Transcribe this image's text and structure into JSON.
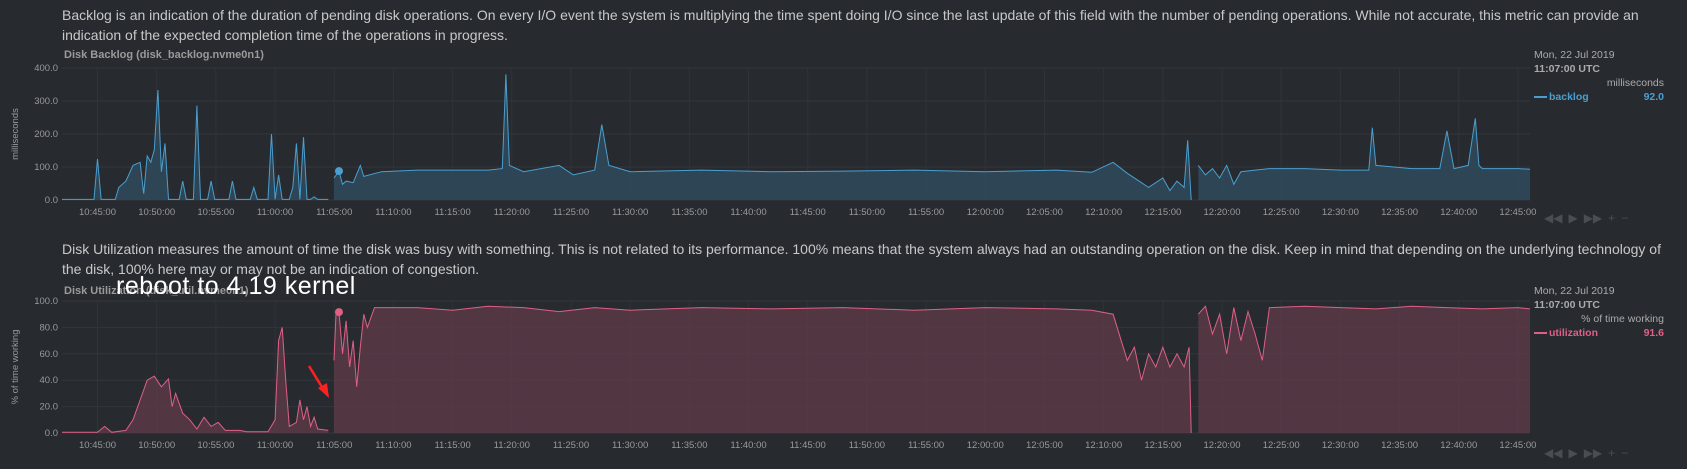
{
  "backlog_description": "Backlog is an indication of the duration of pending disk operations. On every I/O event the system is multiplying the time spent doing I/O since the last update of this field with the number of pending operations. While not accurate, this metric can provide an indication of the expected completion time of the operations in progress.",
  "utilization_description": "Disk Utilization measures the amount of time the disk was busy with something. This is not related to its performance. 100% means that the system always had an outstanding operation on the disk. Keep in mind that depending on the underlying technology of the disk, 100% here may or may not be an indication of congestion.",
  "annotation_text": "reboot to 4.19 kernel",
  "charts": {
    "backlog": {
      "title": "Disk Backlog (disk_backlog.nvme0n1)",
      "ylabel": "milliseconds",
      "legend": {
        "date": "Mon, 22 Jul 2019",
        "time": "11:07:00 UTC",
        "units": "milliseconds",
        "series": "backlog",
        "value": "92.0"
      },
      "color": "#4a9fd0",
      "fill": "#2f4a5c"
    },
    "utilization": {
      "title": "Disk Utilization (disk_util.nvme0n1)",
      "ylabel": "% of time working",
      "legend": {
        "date": "Mon, 22 Jul 2019",
        "time": "11:07:00 UTC",
        "units": "% of time working",
        "series": "utilization",
        "value": "91.6"
      },
      "color": "#e05f85",
      "fill": "#5a3a47"
    }
  },
  "controls": [
    "◀◀",
    "▶",
    "▶▶",
    "+",
    "−"
  ],
  "chart_data": [
    {
      "type": "area",
      "title": "Disk Backlog (disk_backlog.nvme0n1)",
      "ylabel": "milliseconds",
      "ylim": [
        0,
        420
      ],
      "yticks": [
        "400.0",
        "300.0",
        "200.0",
        "100.0",
        "0.0"
      ],
      "xticks": [
        "10:45:00",
        "10:50:00",
        "10:55:00",
        "11:00:00",
        "11:05:00",
        "11:10:00",
        "11:15:00",
        "11:20:00",
        "11:25:00",
        "11:30:00",
        "11:35:00",
        "11:40:00",
        "11:45:00",
        "11:50:00",
        "11:55:00",
        "12:00:00",
        "12:05:00",
        "12:10:00",
        "12:15:00",
        "12:20:00",
        "12:25:00",
        "12:30:00",
        "12:35:00",
        "12:40:00",
        "12:45:00"
      ],
      "grid": true,
      "series": [
        {
          "name": "backlog",
          "segments": [
            [
              [
                10.7,
                2
              ],
              [
                10.745,
                2
              ],
              [
                10.75,
                130
              ],
              [
                10.755,
                2
              ],
              [
                10.775,
                2
              ],
              [
                10.78,
                40
              ],
              [
                10.79,
                60
              ],
              [
                10.8,
                110
              ],
              [
                10.81,
                120
              ],
              [
                10.815,
                20
              ],
              [
                10.82,
                140
              ],
              [
                10.825,
                120
              ],
              [
                10.83,
                160
              ],
              [
                10.835,
                350
              ],
              [
                10.84,
                90
              ],
              [
                10.845,
                180
              ],
              [
                10.85,
                2
              ],
              [
                10.865,
                2
              ],
              [
                10.87,
                60
              ],
              [
                10.875,
                2
              ],
              [
                10.885,
                2
              ],
              [
                10.89,
                300
              ],
              [
                10.895,
                2
              ],
              [
                10.905,
                2
              ],
              [
                10.91,
                60
              ],
              [
                10.915,
                2
              ],
              [
                10.935,
                2
              ],
              [
                10.94,
                60
              ],
              [
                10.945,
                2
              ],
              [
                10.965,
                2
              ],
              [
                10.97,
                40
              ],
              [
                10.975,
                2
              ],
              [
                10.99,
                2
              ],
              [
                10.995,
                210
              ],
              [
                11.0,
                2
              ],
              [
                11.005,
                80
              ],
              [
                11.01,
                2
              ],
              [
                11.02,
                2
              ],
              [
                11.025,
                40
              ],
              [
                11.03,
                180
              ],
              [
                11.035,
                2
              ],
              [
                11.04,
                200
              ],
              [
                11.045,
                2
              ],
              [
                11.05,
                2
              ],
              [
                11.055,
                10
              ],
              [
                11.06,
                2
              ],
              [
                11.075,
                2
              ]
            ],
            [
              [
                11.083,
                70
              ],
              [
                11.09,
                92
              ],
              [
                11.095,
                50
              ],
              [
                11.1,
                60
              ],
              [
                11.11,
                55
              ],
              [
                11.12,
                110
              ],
              [
                11.125,
                75
              ],
              [
                11.15,
                90
              ],
              [
                11.2,
                95
              ],
              [
                11.3,
                95
              ],
              [
                11.32,
                100
              ],
              [
                11.325,
                400
              ],
              [
                11.33,
                110
              ],
              [
                11.35,
                90
              ],
              [
                11.4,
                110
              ],
              [
                11.42,
                80
              ],
              [
                11.45,
                95
              ],
              [
                11.46,
                240
              ],
              [
                11.47,
                110
              ],
              [
                11.5,
                90
              ],
              [
                11.6,
                95
              ],
              [
                11.7,
                90
              ],
              [
                11.8,
                92
              ],
              [
                11.9,
                95
              ],
              [
                12.0,
                90
              ],
              [
                12.1,
                95
              ],
              [
                12.15,
                88
              ],
              [
                12.18,
                120
              ],
              [
                12.2,
                85
              ],
              [
                12.23,
                40
              ],
              [
                12.25,
                70
              ],
              [
                12.26,
                30
              ],
              [
                12.27,
                60
              ],
              [
                12.28,
                40
              ],
              [
                12.285,
                190
              ],
              [
                12.29,
                0
              ]
            ],
            [
              [
                12.3,
                110
              ],
              [
                12.31,
                80
              ],
              [
                12.32,
                100
              ],
              [
                12.33,
                70
              ],
              [
                12.34,
                110
              ],
              [
                12.35,
                50
              ],
              [
                12.36,
                90
              ],
              [
                12.38,
                95
              ],
              [
                12.4,
                100
              ],
              [
                12.45,
                100
              ],
              [
                12.5,
                95
              ],
              [
                12.54,
                95
              ],
              [
                12.545,
                230
              ],
              [
                12.55,
                110
              ],
              [
                12.6,
                100
              ],
              [
                12.64,
                100
              ],
              [
                12.65,
                220
              ],
              [
                12.66,
                100
              ],
              [
                12.68,
                110
              ],
              [
                12.69,
                260
              ],
              [
                12.695,
                110
              ],
              [
                12.7,
                100
              ],
              [
                12.75,
                100
              ],
              [
                12.767,
                98
              ]
            ]
          ]
        }
      ]
    },
    {
      "type": "area",
      "title": "Disk Utilization (disk_util.nvme0n1)",
      "ylabel": "% of time working",
      "ylim": [
        0,
        100
      ],
      "yticks": [
        "100.0",
        "80.0",
        "60.0",
        "40.0",
        "20.0",
        "0.0"
      ],
      "xticks": [
        "10:45:00",
        "10:50:00",
        "10:55:00",
        "11:00:00",
        "11:05:00",
        "11:10:00",
        "11:15:00",
        "11:20:00",
        "11:25:00",
        "11:30:00",
        "11:35:00",
        "11:40:00",
        "11:45:00",
        "11:50:00",
        "11:55:00",
        "12:00:00",
        "12:05:00",
        "12:10:00",
        "12:15:00",
        "12:20:00",
        "12:25:00",
        "12:30:00",
        "12:35:00",
        "12:40:00",
        "12:45:00"
      ],
      "grid": true,
      "series": [
        {
          "name": "utilization",
          "segments": [
            [
              [
                10.7,
                0.5
              ],
              [
                10.75,
                0.5
              ],
              [
                10.76,
                5
              ],
              [
                10.77,
                0.5
              ],
              [
                10.79,
                2
              ],
              [
                10.8,
                10
              ],
              [
                10.81,
                25
              ],
              [
                10.82,
                40
              ],
              [
                10.83,
                43
              ],
              [
                10.84,
                35
              ],
              [
                10.85,
                41
              ],
              [
                10.855,
                20
              ],
              [
                10.86,
                30
              ],
              [
                10.87,
                15
              ],
              [
                10.88,
                10
              ],
              [
                10.89,
                3
              ],
              [
                10.9,
                12
              ],
              [
                10.91,
                5
              ],
              [
                10.92,
                8
              ],
              [
                10.93,
                2
              ],
              [
                10.95,
                2
              ],
              [
                10.96,
                1
              ],
              [
                10.99,
                1
              ],
              [
                11.0,
                10
              ],
              [
                11.005,
                70
              ],
              [
                11.01,
                80
              ],
              [
                11.015,
                40
              ],
              [
                11.02,
                5
              ],
              [
                11.03,
                8
              ],
              [
                11.035,
                25
              ],
              [
                11.04,
                10
              ],
              [
                11.045,
                20
              ],
              [
                11.05,
                5
              ],
              [
                11.055,
                12
              ],
              [
                11.06,
                3
              ],
              [
                11.075,
                2
              ]
            ],
            [
              [
                11.083,
                55
              ],
              [
                11.086,
                92
              ],
              [
                11.09,
                91.6
              ],
              [
                11.095,
                60
              ],
              [
                11.1,
                85
              ],
              [
                11.105,
                50
              ],
              [
                11.11,
                70
              ],
              [
                11.115,
                35
              ],
              [
                11.12,
                65
              ],
              [
                11.125,
                90
              ],
              [
                11.13,
                80
              ],
              [
                11.14,
                95
              ],
              [
                11.2,
                95
              ],
              [
                11.25,
                93
              ],
              [
                11.3,
                96
              ],
              [
                11.35,
                95
              ],
              [
                11.4,
                92
              ],
              [
                11.45,
                95
              ],
              [
                11.5,
                93
              ],
              [
                11.6,
                95
              ],
              [
                11.7,
                94
              ],
              [
                11.8,
                95
              ],
              [
                11.9,
                93
              ],
              [
                12.0,
                95
              ],
              [
                12.1,
                94
              ],
              [
                12.15,
                93
              ],
              [
                12.18,
                90
              ],
              [
                12.2,
                55
              ],
              [
                12.21,
                65
              ],
              [
                12.22,
                40
              ],
              [
                12.23,
                60
              ],
              [
                12.24,
                50
              ],
              [
                12.25,
                65
              ],
              [
                12.26,
                50
              ],
              [
                12.27,
                60
              ],
              [
                12.28,
                50
              ],
              [
                12.287,
                65
              ],
              [
                12.29,
                0
              ]
            ],
            [
              [
                12.3,
                90
              ],
              [
                12.31,
                96
              ],
              [
                12.32,
                75
              ],
              [
                12.33,
                90
              ],
              [
                12.34,
                60
              ],
              [
                12.35,
                95
              ],
              [
                12.36,
                70
              ],
              [
                12.37,
                92
              ],
              [
                12.38,
                75
              ],
              [
                12.39,
                55
              ],
              [
                12.4,
                95
              ],
              [
                12.45,
                96
              ],
              [
                12.5,
                95
              ],
              [
                12.55,
                94
              ],
              [
                12.6,
                96
              ],
              [
                12.65,
                95
              ],
              [
                12.7,
                94
              ],
              [
                12.75,
                95
              ],
              [
                12.767,
                94
              ]
            ]
          ]
        }
      ]
    }
  ]
}
